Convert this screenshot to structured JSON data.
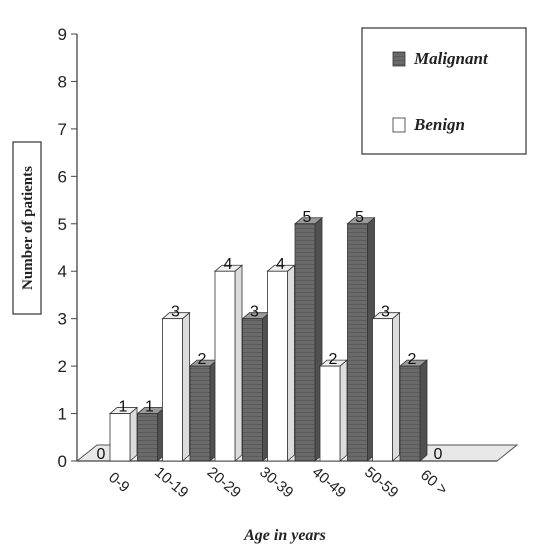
{
  "chart_data": {
    "type": "bar",
    "categories": [
      "0-9",
      "10-19",
      "20-29",
      "30-39",
      "40-49",
      "50-59",
      "60 >"
    ],
    "series": [
      {
        "name": "Malignant",
        "values": [
          0,
          1,
          2,
          3,
          5,
          5,
          2
        ],
        "color": "#6a6a6a"
      },
      {
        "name": "Benign",
        "values": [
          1,
          3,
          4,
          4,
          2,
          3,
          0
        ],
        "color": "#ffffff"
      }
    ],
    "value_labels": {
      "Malignant": [
        "0",
        "1",
        "2",
        "3",
        "5",
        "5",
        "2"
      ],
      "Benign": [
        "1",
        "3",
        "4",
        "4",
        "2",
        "3",
        "0"
      ]
    },
    "xlabel": "Age in years",
    "ylabel": "Number of patients",
    "ylim": [
      0,
      9
    ],
    "yticks": [
      "0",
      "1",
      "2",
      "3",
      "4",
      "5",
      "6",
      "7",
      "8",
      "9"
    ],
    "legend_position": "top-right",
    "style": "3d-bar"
  }
}
